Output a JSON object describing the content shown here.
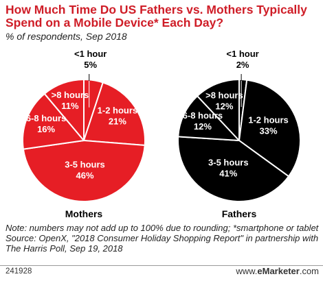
{
  "header": {
    "title": "How Much Time Do US Fathers vs. Mothers Typically Spend on a Mobile Device* Each Day?",
    "subtitle": "% of respondents, Sep 2018"
  },
  "colors": {
    "title": "#cf1d27",
    "mothers": "#e61e25",
    "fathers": "#000000",
    "slice_border": "#ffffff",
    "label_on_slice": "#ffffff",
    "label_outside": "#000000"
  },
  "chart_data": [
    {
      "type": "pie",
      "title": "Mothers",
      "color": "#e61e25",
      "slices": [
        {
          "label": "<1 hour",
          "value": 5,
          "value_label": "5%"
        },
        {
          "label": "1-2 hours",
          "value": 21,
          "value_label": "21%"
        },
        {
          "label": "3-5 hours",
          "value": 46,
          "value_label": "46%"
        },
        {
          "label": "6-8 hours",
          "value": 16,
          "value_label": "16%"
        },
        {
          "label": ">8 hours",
          "value": 11,
          "value_label": "11%"
        }
      ]
    },
    {
      "type": "pie",
      "title": "Fathers",
      "color": "#000000",
      "slices": [
        {
          "label": "<1 hour",
          "value": 2,
          "value_label": "2%"
        },
        {
          "label": "1-2 hours",
          "value": 33,
          "value_label": "33%"
        },
        {
          "label": "3-5 hours",
          "value": 41,
          "value_label": "41%"
        },
        {
          "label": "6-8 hours",
          "value": 12,
          "value_label": "12%"
        },
        {
          "label": ">8 hours",
          "value": 12,
          "value_label": "12%"
        }
      ]
    }
  ],
  "footer": {
    "note": "Note: numbers may not add up to 100% due to rounding; *smartphone or tablet",
    "source": "Source: OpenX, \"2018 Consumer Holiday Shopping Report\" in partnership with The Harris Poll, Sep 19, 2018",
    "chart_id": "241928",
    "site_prefix": "www.",
    "site_brand": "eMarketer",
    "site_suffix": ".com"
  }
}
